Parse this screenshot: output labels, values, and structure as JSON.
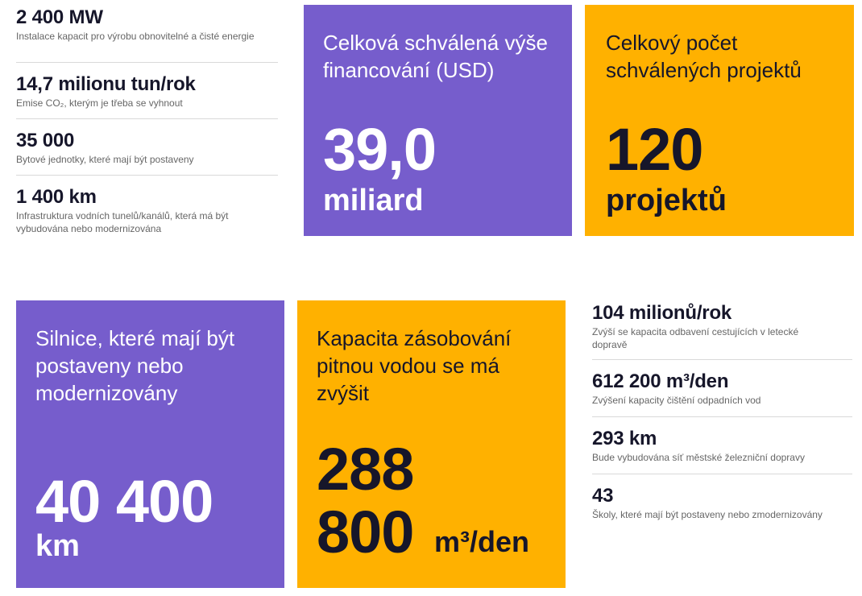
{
  "top_stats": [
    {
      "value": "2 400 MW",
      "desc": "Instalace kapacit pro výrobu obnovitelné a čisté energie"
    },
    {
      "value": "14,7 milionu tun/rok",
      "desc": "Emise CO₂, kterým je třeba se vyhnout"
    },
    {
      "value": "35 000",
      "desc": "Bytové jednotky, které mají být postaveny"
    },
    {
      "value": "1 400 km",
      "desc": "Infrastruktura vodních tunelů/kanálů, která má být vybudována nebo modernizována"
    }
  ],
  "tiles": {
    "financing": {
      "label": "Celková schválená výše financování (USD)",
      "number": "39,0",
      "unit": "miliard",
      "color": "#765dcc"
    },
    "projects": {
      "label": "Celkový počet schválených projektů",
      "number": "120",
      "unit": "projektů",
      "color": "#ffb100"
    },
    "roads": {
      "label": "Silnice, které mají být postaveny nebo modernizovány",
      "number": "40 400",
      "unit": "km",
      "color": "#765dcc"
    },
    "water": {
      "label": "Kapacita zásobování pitnou vodou se má zvýšit",
      "number_line1": "288",
      "number_line2": "800",
      "unit": "m³/den",
      "color": "#ffb100"
    }
  },
  "bottom_stats": [
    {
      "value": "104 milionů/rok",
      "desc": "Zvýší se kapacita odbavení cestujících v letecké dopravě"
    },
    {
      "value": "612 200 m³/den",
      "desc": "Zvýšení kapacity čištění odpadních vod"
    },
    {
      "value": "293 km",
      "desc": "Bude vybudována síť městské železniční dopravy"
    },
    {
      "value": "43",
      "desc": "Školy, které mají být postaveny nebo zmodernizovány"
    }
  ]
}
